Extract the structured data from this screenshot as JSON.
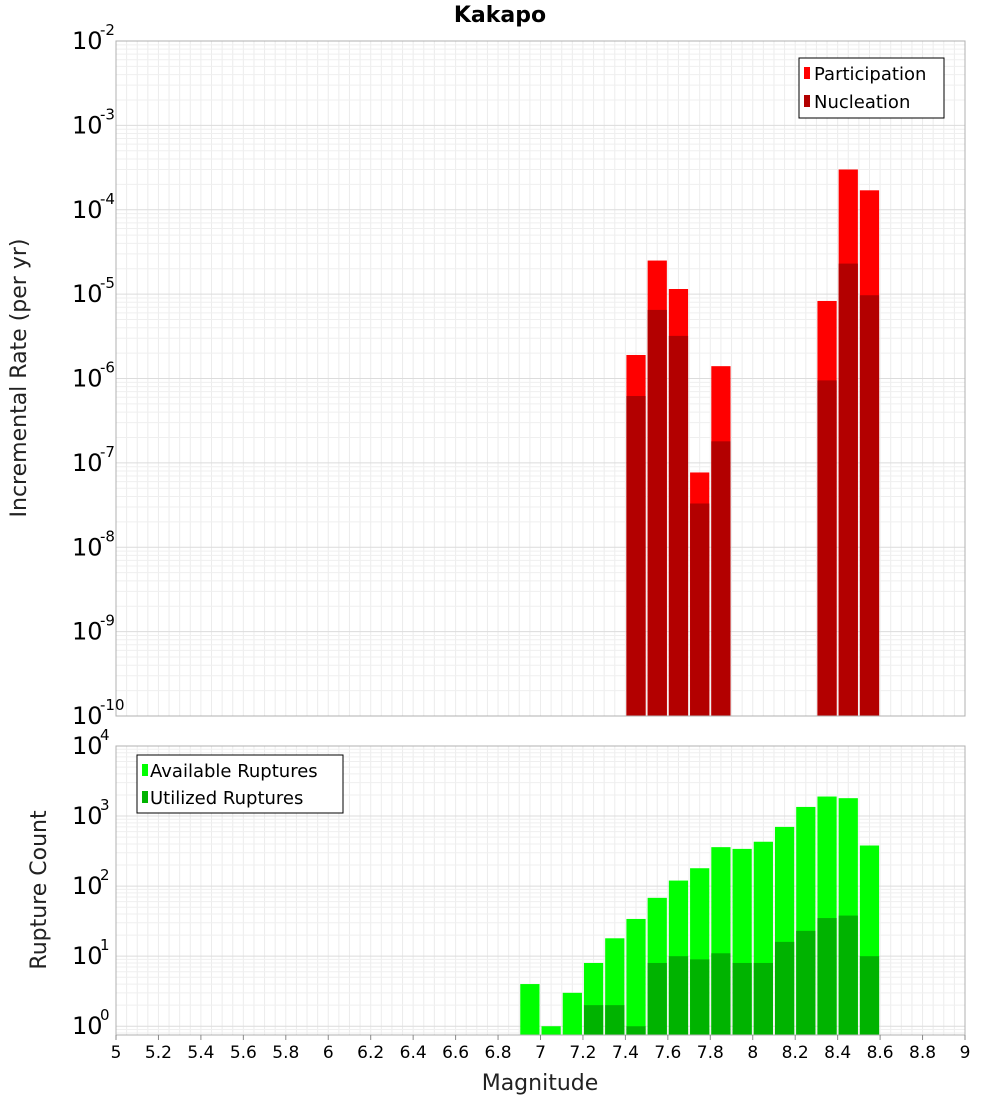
{
  "chart_data": [
    {
      "type": "bar",
      "title": "Kakapo",
      "xlabel": "",
      "ylabel": "Incremental Rate (per yr)",
      "yscale": "log",
      "ylim": [
        1e-10,
        0.01
      ],
      "xlim": [
        5,
        9
      ],
      "bin_width": 0.1,
      "grid": true,
      "legend_position": "top-right",
      "y_ticks": [
        {
          "base": "10",
          "exp": "-10"
        },
        {
          "base": "10",
          "exp": "-9"
        },
        {
          "base": "10",
          "exp": "-8"
        },
        {
          "base": "10",
          "exp": "-7"
        },
        {
          "base": "10",
          "exp": "-6"
        },
        {
          "base": "10",
          "exp": "-5"
        },
        {
          "base": "10",
          "exp": "-4"
        },
        {
          "base": "10",
          "exp": "-3"
        },
        {
          "base": "10",
          "exp": "-2"
        }
      ],
      "series": [
        {
          "name": "Participation",
          "color": "#ff0000",
          "points": [
            [
              7.45,
              1.9e-06
            ],
            [
              7.55,
              2.5e-05
            ],
            [
              7.65,
              1.15e-05
            ],
            [
              7.75,
              7.7e-08
            ],
            [
              7.85,
              1.4e-06
            ],
            [
              8.35,
              8.3e-06
            ],
            [
              8.45,
              0.0003
            ],
            [
              8.55,
              0.00017
            ]
          ]
        },
        {
          "name": "Nucleation",
          "color": "#b30000",
          "points": [
            [
              7.45,
              6.2e-07
            ],
            [
              7.55,
              6.5e-06
            ],
            [
              7.65,
              3.2e-06
            ],
            [
              7.75,
              3.3e-08
            ],
            [
              7.85,
              1.8e-07
            ],
            [
              8.35,
              9.5e-07
            ],
            [
              8.45,
              2.3e-05
            ],
            [
              8.55,
              9.7e-06
            ]
          ]
        }
      ]
    },
    {
      "type": "bar",
      "title": "",
      "xlabel": "Magnitude",
      "ylabel": "Rupture Count",
      "yscale": "log",
      "ylim": [
        0.75,
        10000
      ],
      "xlim": [
        5,
        9
      ],
      "bin_width": 0.1,
      "grid": true,
      "legend_position": "top-left",
      "x_ticks": [
        "5",
        "5.2",
        "5.4",
        "5.6",
        "5.8",
        "6",
        "6.2",
        "6.4",
        "6.6",
        "6.8",
        "7",
        "7.2",
        "7.4",
        "7.6",
        "7.8",
        "8",
        "8.2",
        "8.4",
        "8.6",
        "8.8",
        "9"
      ],
      "y_ticks": [
        {
          "base": "10",
          "exp": "0"
        },
        {
          "base": "10",
          "exp": "1"
        },
        {
          "base": "10",
          "exp": "2"
        },
        {
          "base": "10",
          "exp": "3"
        },
        {
          "base": "10",
          "exp": "4"
        }
      ],
      "series": [
        {
          "name": "Available Ruptures",
          "color": "#00ff00",
          "points": [
            [
              6.95,
              4
            ],
            [
              7.05,
              1
            ],
            [
              7.15,
              3
            ],
            [
              7.25,
              8
            ],
            [
              7.35,
              18
            ],
            [
              7.45,
              34
            ],
            [
              7.55,
              68
            ],
            [
              7.65,
              120
            ],
            [
              7.75,
              180
            ],
            [
              7.85,
              360
            ],
            [
              7.95,
              340
            ],
            [
              8.05,
              430
            ],
            [
              8.15,
              700
            ],
            [
              8.25,
              1350
            ],
            [
              8.35,
              1900
            ],
            [
              8.45,
              1800
            ],
            [
              8.55,
              380
            ]
          ]
        },
        {
          "name": "Utilized Ruptures",
          "color": "#00b300",
          "points": [
            [
              7.25,
              2
            ],
            [
              7.35,
              2
            ],
            [
              7.45,
              1
            ],
            [
              7.55,
              8
            ],
            [
              7.65,
              10
            ],
            [
              7.75,
              9
            ],
            [
              7.85,
              11
            ],
            [
              7.95,
              8
            ],
            [
              8.05,
              8
            ],
            [
              8.15,
              16
            ],
            [
              8.25,
              23
            ],
            [
              8.35,
              35
            ],
            [
              8.45,
              38
            ],
            [
              8.55,
              10
            ]
          ]
        }
      ]
    }
  ]
}
